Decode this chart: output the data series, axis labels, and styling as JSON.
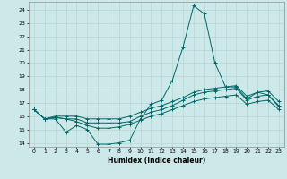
{
  "xlabel": "Humidex (Indice chaleur)",
  "background_color": "#cde8e8",
  "grid_color": "#b8d4d4",
  "line_color": "#006868",
  "xlim": [
    -0.5,
    23.5
  ],
  "ylim": [
    13.7,
    24.6
  ],
  "yticks": [
    14,
    15,
    16,
    17,
    18,
    19,
    20,
    21,
    22,
    23,
    24
  ],
  "xticks": [
    0,
    1,
    2,
    3,
    4,
    5,
    6,
    7,
    8,
    9,
    10,
    11,
    12,
    13,
    14,
    15,
    16,
    17,
    18,
    19,
    20,
    21,
    22,
    23
  ],
  "series": [
    [
      16.5,
      15.8,
      15.8,
      14.8,
      15.3,
      15.0,
      13.9,
      13.9,
      14.0,
      14.2,
      15.8,
      16.9,
      17.2,
      18.7,
      21.2,
      24.3,
      23.7,
      20.0,
      18.2,
      18.2,
      17.3,
      17.8,
      17.6,
      16.7
    ],
    [
      16.5,
      15.8,
      15.9,
      15.8,
      15.8,
      15.5,
      15.5,
      15.5,
      15.5,
      15.6,
      16.0,
      16.3,
      16.5,
      16.8,
      17.2,
      17.6,
      17.8,
      17.9,
      18.0,
      18.1,
      17.2,
      17.5,
      17.6,
      16.8
    ],
    [
      16.5,
      15.8,
      15.9,
      15.8,
      15.6,
      15.3,
      15.1,
      15.1,
      15.2,
      15.4,
      15.7,
      16.0,
      16.2,
      16.5,
      16.8,
      17.1,
      17.3,
      17.4,
      17.5,
      17.6,
      16.9,
      17.1,
      17.2,
      16.5
    ],
    [
      16.5,
      15.8,
      16.0,
      16.0,
      16.0,
      15.8,
      15.8,
      15.8,
      15.8,
      16.0,
      16.3,
      16.6,
      16.8,
      17.1,
      17.4,
      17.8,
      18.0,
      18.1,
      18.2,
      18.3,
      17.5,
      17.8,
      17.9,
      17.1
    ]
  ]
}
